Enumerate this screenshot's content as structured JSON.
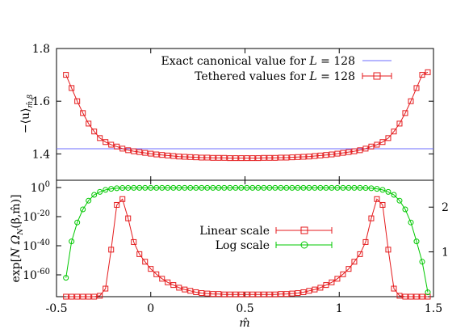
{
  "chart_data": [
    {
      "type": "line",
      "ylabel": "−⟨u⟩",
      "ylabel_sub": "m̂,β",
      "xlim": [
        -0.5,
        1.5
      ],
      "ylim": [
        1.3,
        1.8
      ],
      "yticks": [
        "1.4",
        "1.6",
        "1.8"
      ],
      "legend_position": "top-right",
      "series": [
        {
          "name_pre": "Exact canonical value for ",
          "name_var": "L",
          "name_post": " = 128",
          "color": "#6e6eff",
          "kind": "hline",
          "value": 1.4195
        },
        {
          "name_pre": "Tethered values for ",
          "name_var": "L",
          "name_post": " = 128",
          "color": "#e41a1c",
          "kind": "points",
          "marker": "square",
          "x": [
            -0.45,
            -0.42,
            -0.39,
            -0.36,
            -0.33,
            -0.3,
            -0.27,
            -0.24,
            -0.21,
            -0.18,
            -0.15,
            -0.12,
            -0.09,
            -0.06,
            -0.03,
            0.0,
            0.03,
            0.06,
            0.09,
            0.12,
            0.15,
            0.18,
            0.21,
            0.24,
            0.27,
            0.3,
            0.33,
            0.36,
            0.39,
            0.42,
            0.45,
            0.48,
            0.51,
            0.54,
            0.57,
            0.6,
            0.63,
            0.66,
            0.69,
            0.72,
            0.75,
            0.78,
            0.81,
            0.84,
            0.87,
            0.9,
            0.93,
            0.96,
            0.99,
            1.02,
            1.05,
            1.08,
            1.11,
            1.14,
            1.17,
            1.2,
            1.23,
            1.26,
            1.29,
            1.32,
            1.35,
            1.38,
            1.41,
            1.44,
            1.47
          ],
          "y": [
            1.7,
            1.65,
            1.6,
            1.555,
            1.515,
            1.485,
            1.46,
            1.445,
            1.435,
            1.428,
            1.42,
            1.414,
            1.41,
            1.407,
            1.404,
            1.401,
            1.398,
            1.396,
            1.394,
            1.392,
            1.39,
            1.389,
            1.388,
            1.387,
            1.386,
            1.386,
            1.385,
            1.385,
            1.385,
            1.384,
            1.384,
            1.384,
            1.384,
            1.384,
            1.384,
            1.385,
            1.385,
            1.385,
            1.386,
            1.386,
            1.387,
            1.388,
            1.389,
            1.39,
            1.392,
            1.394,
            1.396,
            1.398,
            1.401,
            1.404,
            1.407,
            1.41,
            1.414,
            1.42,
            1.428,
            1.435,
            1.445,
            1.46,
            1.485,
            1.515,
            1.555,
            1.6,
            1.65,
            1.7,
            1.71
          ]
        }
      ]
    },
    {
      "type": "line",
      "xlabel": "m̂",
      "ylabel_pre": "exp[",
      "ylabel_var": "N Ω",
      "ylabel_sub": "N",
      "ylabel_post": "(β,m̂)]",
      "xlim": [
        -0.5,
        1.5
      ],
      "xticks": [
        "-0.5",
        "0",
        "0.5",
        "1",
        "1.5"
      ],
      "ylim_left_log10": [
        -75,
        5
      ],
      "yticks_left": [
        {
          "base": "10",
          "exp": "0",
          "value": 0
        },
        {
          "base": "10",
          "exp": "-20",
          "value": -20
        },
        {
          "base": "10",
          "exp": "-40",
          "value": -40
        },
        {
          "base": "10",
          "exp": "-60",
          "value": -60
        }
      ],
      "ylim_right": [
        0,
        2.6
      ],
      "yticks_right": [
        "1",
        "2"
      ],
      "legend_position": "center",
      "series": [
        {
          "name": "Linear scale",
          "color": "#e41a1c",
          "marker": "square",
          "axis": "right",
          "x": [
            -0.45,
            -0.42,
            -0.39,
            -0.36,
            -0.33,
            -0.3,
            -0.27,
            -0.24,
            -0.21,
            -0.18,
            -0.15,
            -0.12,
            -0.09,
            -0.06,
            -0.03,
            0.0,
            0.03,
            0.06,
            0.09,
            0.12,
            0.15,
            0.18,
            0.21,
            0.24,
            0.27,
            0.3,
            0.33,
            0.36,
            0.39,
            0.42,
            0.45,
            0.48,
            0.51,
            0.54,
            0.57,
            0.6,
            0.63,
            0.66,
            0.69,
            0.72,
            0.75,
            0.78,
            0.81,
            0.84,
            0.87,
            0.9,
            0.93,
            0.96,
            0.99,
            1.02,
            1.05,
            1.08,
            1.11,
            1.14,
            1.17,
            1.2,
            1.23,
            1.26,
            1.29,
            1.32,
            1.35,
            1.38,
            1.41,
            1.44,
            1.47
          ],
          "y": [
            0,
            0,
            0,
            0,
            0,
            0,
            0.02,
            0.18,
            1.05,
            2.05,
            2.18,
            1.75,
            1.22,
            0.95,
            0.78,
            0.62,
            0.5,
            0.4,
            0.32,
            0.26,
            0.2,
            0.16,
            0.13,
            0.1,
            0.08,
            0.07,
            0.06,
            0.06,
            0.05,
            0.05,
            0.05,
            0.05,
            0.05,
            0.05,
            0.05,
            0.05,
            0.05,
            0.05,
            0.06,
            0.06,
            0.07,
            0.08,
            0.1,
            0.13,
            0.16,
            0.2,
            0.26,
            0.32,
            0.4,
            0.5,
            0.62,
            0.78,
            0.95,
            1.22,
            1.75,
            2.18,
            2.05,
            1.05,
            0.18,
            0.02,
            0,
            0,
            0,
            0,
            0
          ]
        },
        {
          "name": "Log scale",
          "color": "#00c800",
          "marker": "circle",
          "axis": "left",
          "x": [
            -0.45,
            -0.42,
            -0.39,
            -0.36,
            -0.33,
            -0.3,
            -0.27,
            -0.24,
            -0.21,
            -0.18,
            -0.15,
            -0.12,
            -0.09,
            -0.06,
            -0.03,
            0.0,
            0.03,
            0.06,
            0.09,
            0.12,
            0.15,
            0.18,
            0.21,
            0.24,
            0.27,
            0.3,
            0.33,
            0.36,
            0.39,
            0.42,
            0.45,
            0.48,
            0.51,
            0.54,
            0.57,
            0.6,
            0.63,
            0.66,
            0.69,
            0.72,
            0.75,
            0.78,
            0.81,
            0.84,
            0.87,
            0.9,
            0.93,
            0.96,
            0.99,
            1.02,
            1.05,
            1.08,
            1.11,
            1.14,
            1.17,
            1.2,
            1.23,
            1.26,
            1.29,
            1.32,
            1.35,
            1.38,
            1.41,
            1.44,
            1.47
          ],
          "y": [
            -62,
            -37,
            -24,
            -15,
            -9,
            -5,
            -3,
            -1.6,
            -0.9,
            -0.5,
            -0.3,
            -0.25,
            -0.2,
            -0.2,
            -0.2,
            -0.2,
            -0.2,
            -0.2,
            -0.2,
            -0.2,
            -0.2,
            -0.2,
            -0.2,
            -0.2,
            -0.2,
            -0.2,
            -0.2,
            -0.2,
            -0.2,
            -0.2,
            -0.2,
            -0.2,
            -0.2,
            -0.2,
            -0.2,
            -0.2,
            -0.2,
            -0.2,
            -0.2,
            -0.2,
            -0.2,
            -0.2,
            -0.2,
            -0.2,
            -0.2,
            -0.2,
            -0.2,
            -0.2,
            -0.2,
            -0.2,
            -0.2,
            -0.2,
            -0.2,
            -0.3,
            -0.5,
            -0.9,
            -1.6,
            -3,
            -5,
            -9,
            -15,
            -24,
            -37,
            -51,
            -72
          ]
        }
      ]
    }
  ]
}
